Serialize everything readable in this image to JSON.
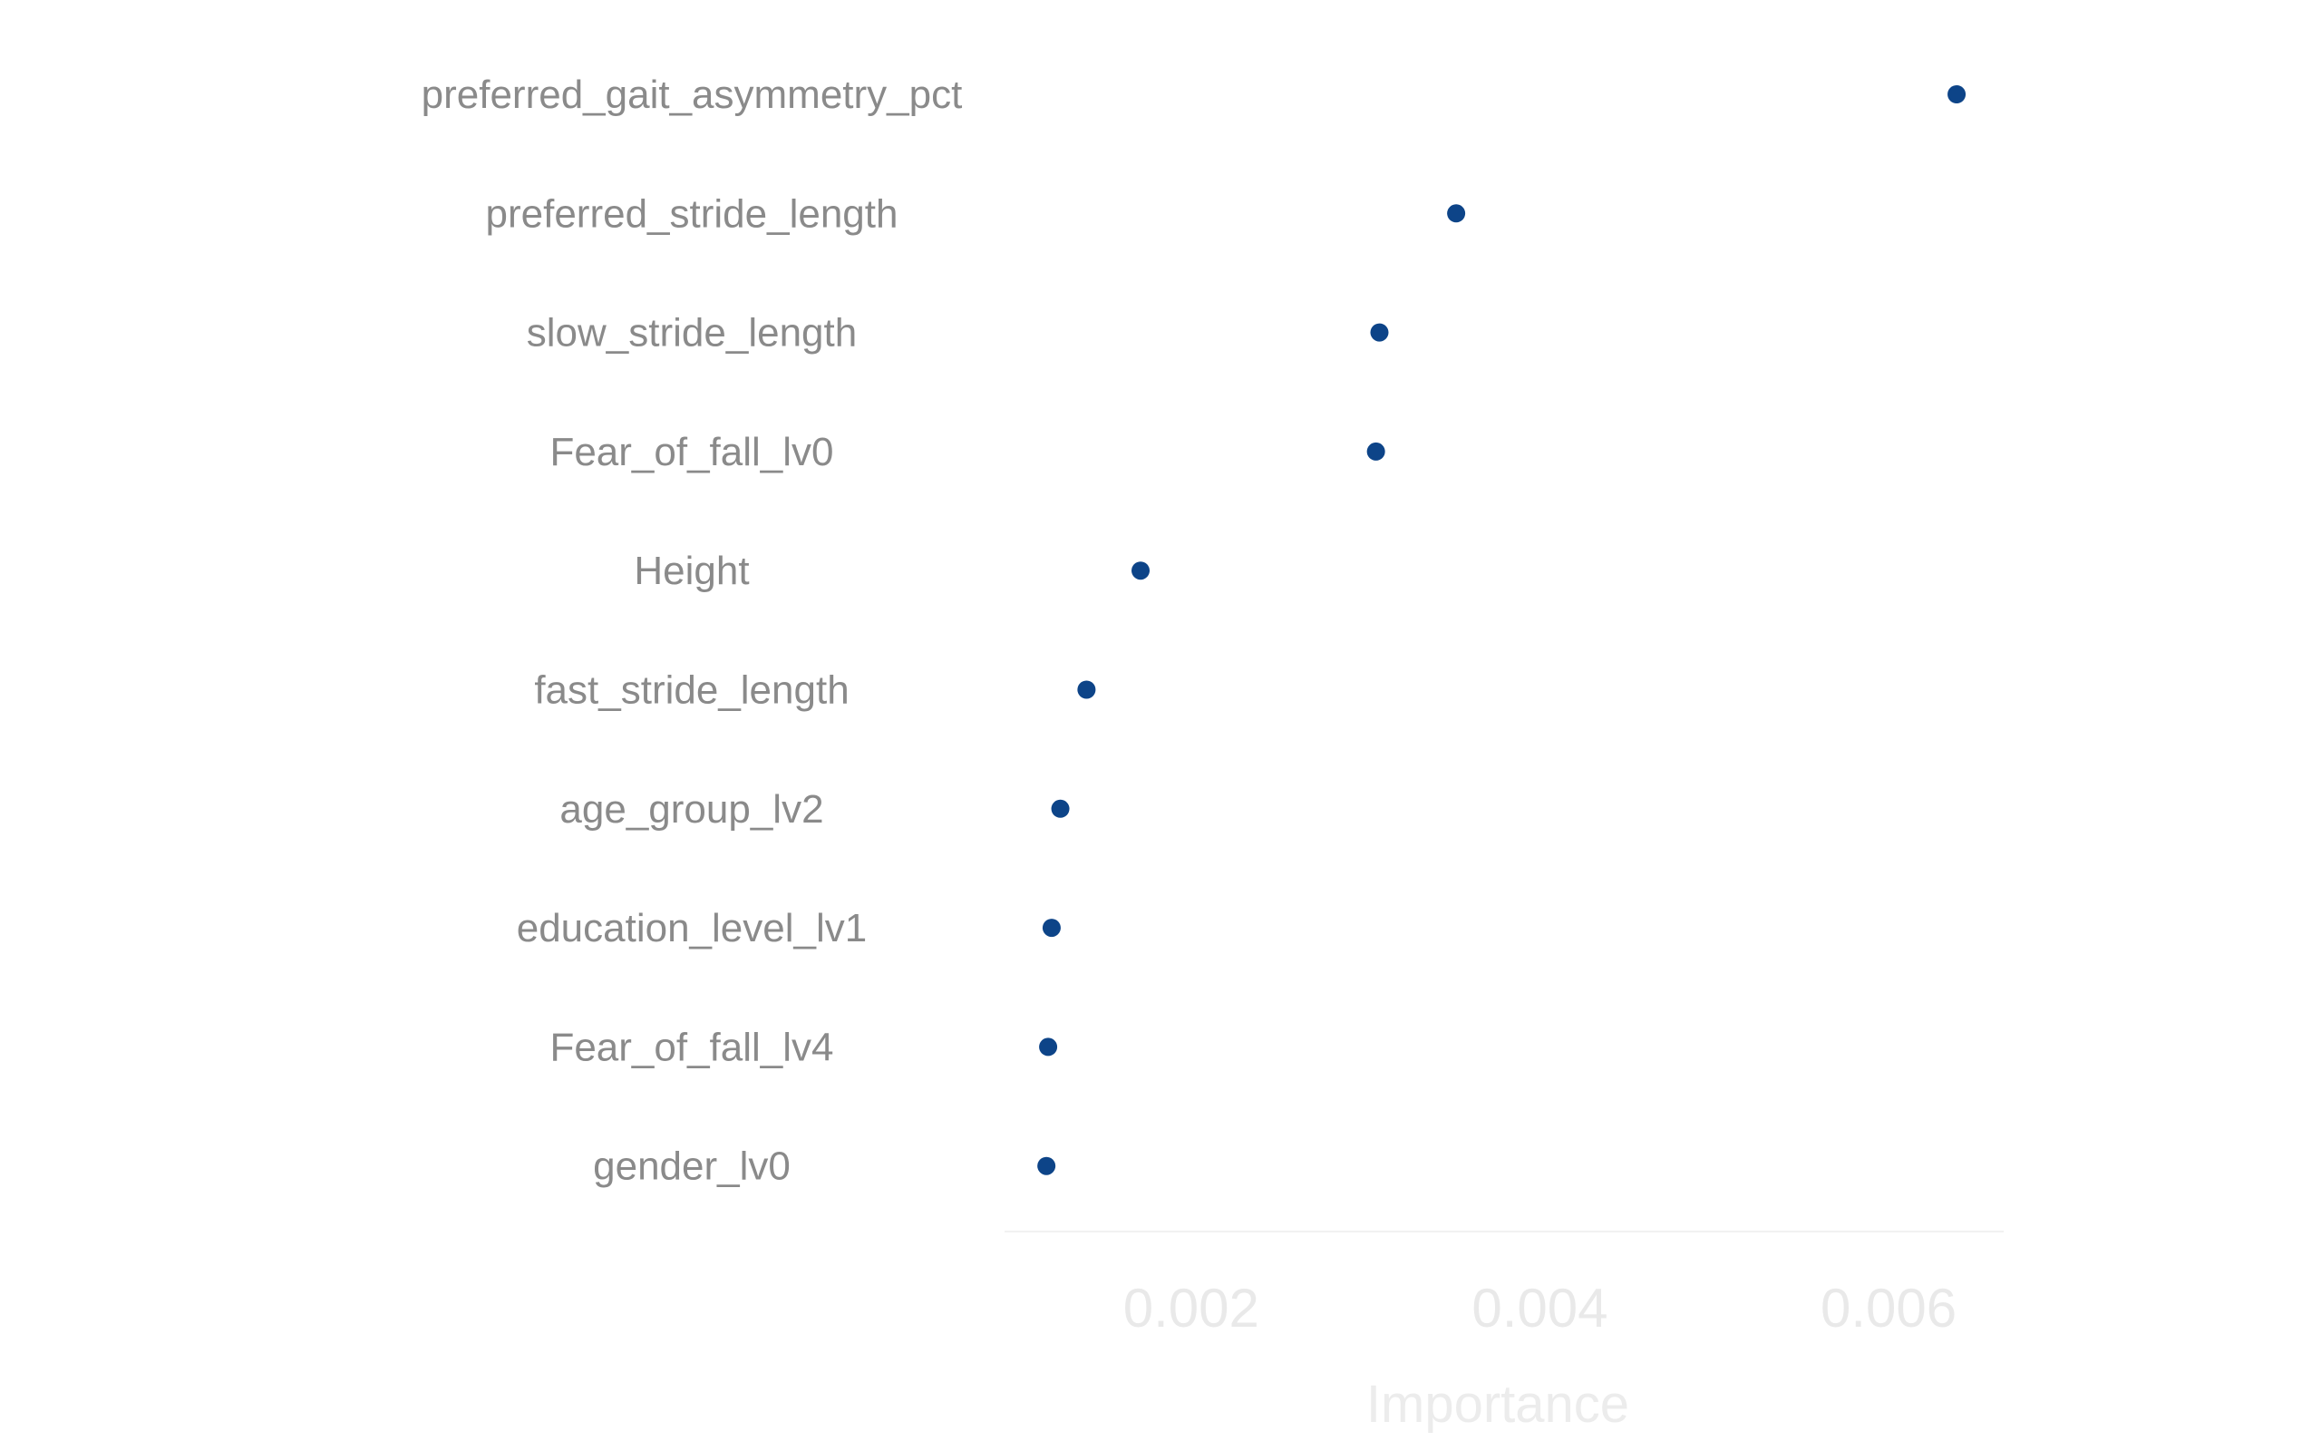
{
  "chart_data": {
    "type": "scatter",
    "title": "",
    "xlabel": "Importance",
    "ylabel": "",
    "xlim": [
      0.00093,
      0.00666
    ],
    "xticks": [
      0.002,
      0.004,
      0.006
    ],
    "xtick_labels": [
      "0.002",
      "0.004",
      "0.006"
    ],
    "grid": false,
    "legend": "none",
    "marker_color": "#0d4488",
    "categories": [
      "preferred_gait_asymmetry_pct",
      "preferred_stride_length",
      "slow_stride_length",
      "Fear_of_fall_lv0",
      "Height",
      "fast_stride_length",
      "age_group_lv2",
      "education_level_lv1",
      "Fear_of_fall_lv4",
      "gender_lv0"
    ],
    "values": [
      0.00639,
      0.00352,
      0.00308,
      0.00306,
      0.00171,
      0.0014,
      0.00125,
      0.0012,
      0.00118,
      0.00117
    ]
  },
  "colors": {
    "marker": "#0d4488",
    "category_label": "#8a8a8a",
    "tick_label": "#e9e9e9",
    "axis_title": "#ececec",
    "axis_line": "#f2f2f2"
  }
}
